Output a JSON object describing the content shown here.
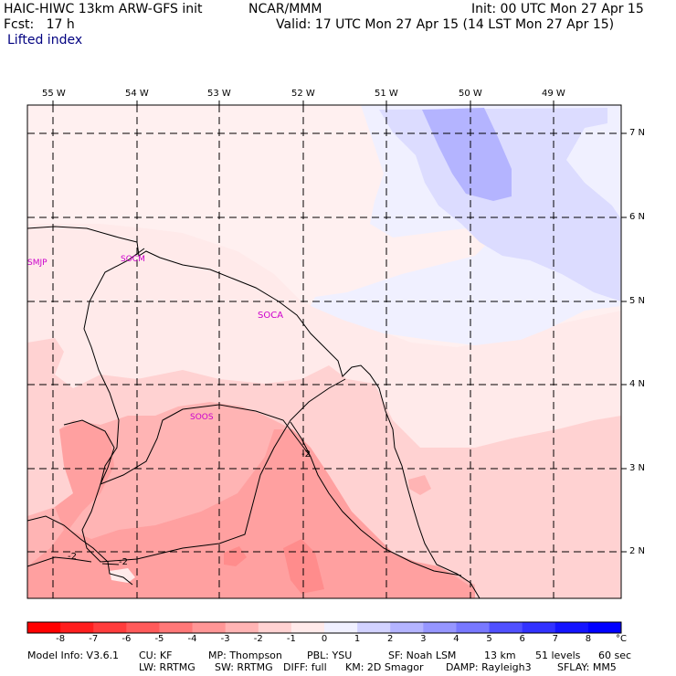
{
  "header": {
    "title": "HAIC-HIWC 13km ARW-GFS init",
    "org": "NCAR/MMM",
    "init": "Init: 00 UTC Mon 27 Apr 15",
    "fcst": "Fcst:   17 h",
    "valid": "Valid: 17 UTC Mon 27 Apr 15 (14 LST Mon 27 Apr 15)",
    "field": "Lifted index"
  },
  "map": {
    "lon_labels": [
      "55 W",
      "54 W",
      "53 W",
      "52 W",
      "51 W",
      "50 W",
      "49 W"
    ],
    "lat_labels": [
      "7 N",
      "6 N",
      "5 N",
      "4 N",
      "3 N",
      "2 N"
    ],
    "stations": [
      "SMJP",
      "SOCM",
      "SOCA",
      "SOOS"
    ],
    "contour_labels": [
      "-2",
      "-2",
      "-2"
    ]
  },
  "colorbar": {
    "levels": [
      "-8",
      "-7",
      "-6",
      "-5",
      "-4",
      "-3",
      "-2",
      "-1",
      "0",
      "1",
      "2",
      "3",
      "4",
      "5",
      "6",
      "7",
      "8"
    ],
    "unit": "°C",
    "colors": [
      "#ff0000",
      "#ff1e1e",
      "#ff3c3c",
      "#ff5a5a",
      "#ff7878",
      "#ff9696",
      "#ffb4b4",
      "#ffd2d2",
      "#ffeaea",
      "#f0f0ff",
      "#d2d2ff",
      "#b4b4ff",
      "#9696ff",
      "#7878ff",
      "#5050ff",
      "#3232ff",
      "#1414ff",
      "#0000ff"
    ]
  },
  "footer": {
    "line1": [
      "Model Info: V3.6.1",
      "CU: KF",
      "MP: Thompson",
      "PBL: YSU",
      "SF: Noah LSM",
      "13 km",
      "51 levels",
      "60 sec"
    ],
    "line2": [
      "LW: RRTMG",
      "SW: RRTMG",
      "DIFF: full",
      "KM: 2D Smagor",
      "DAMP: Rayleigh3",
      "SFLAY: MM5"
    ]
  }
}
